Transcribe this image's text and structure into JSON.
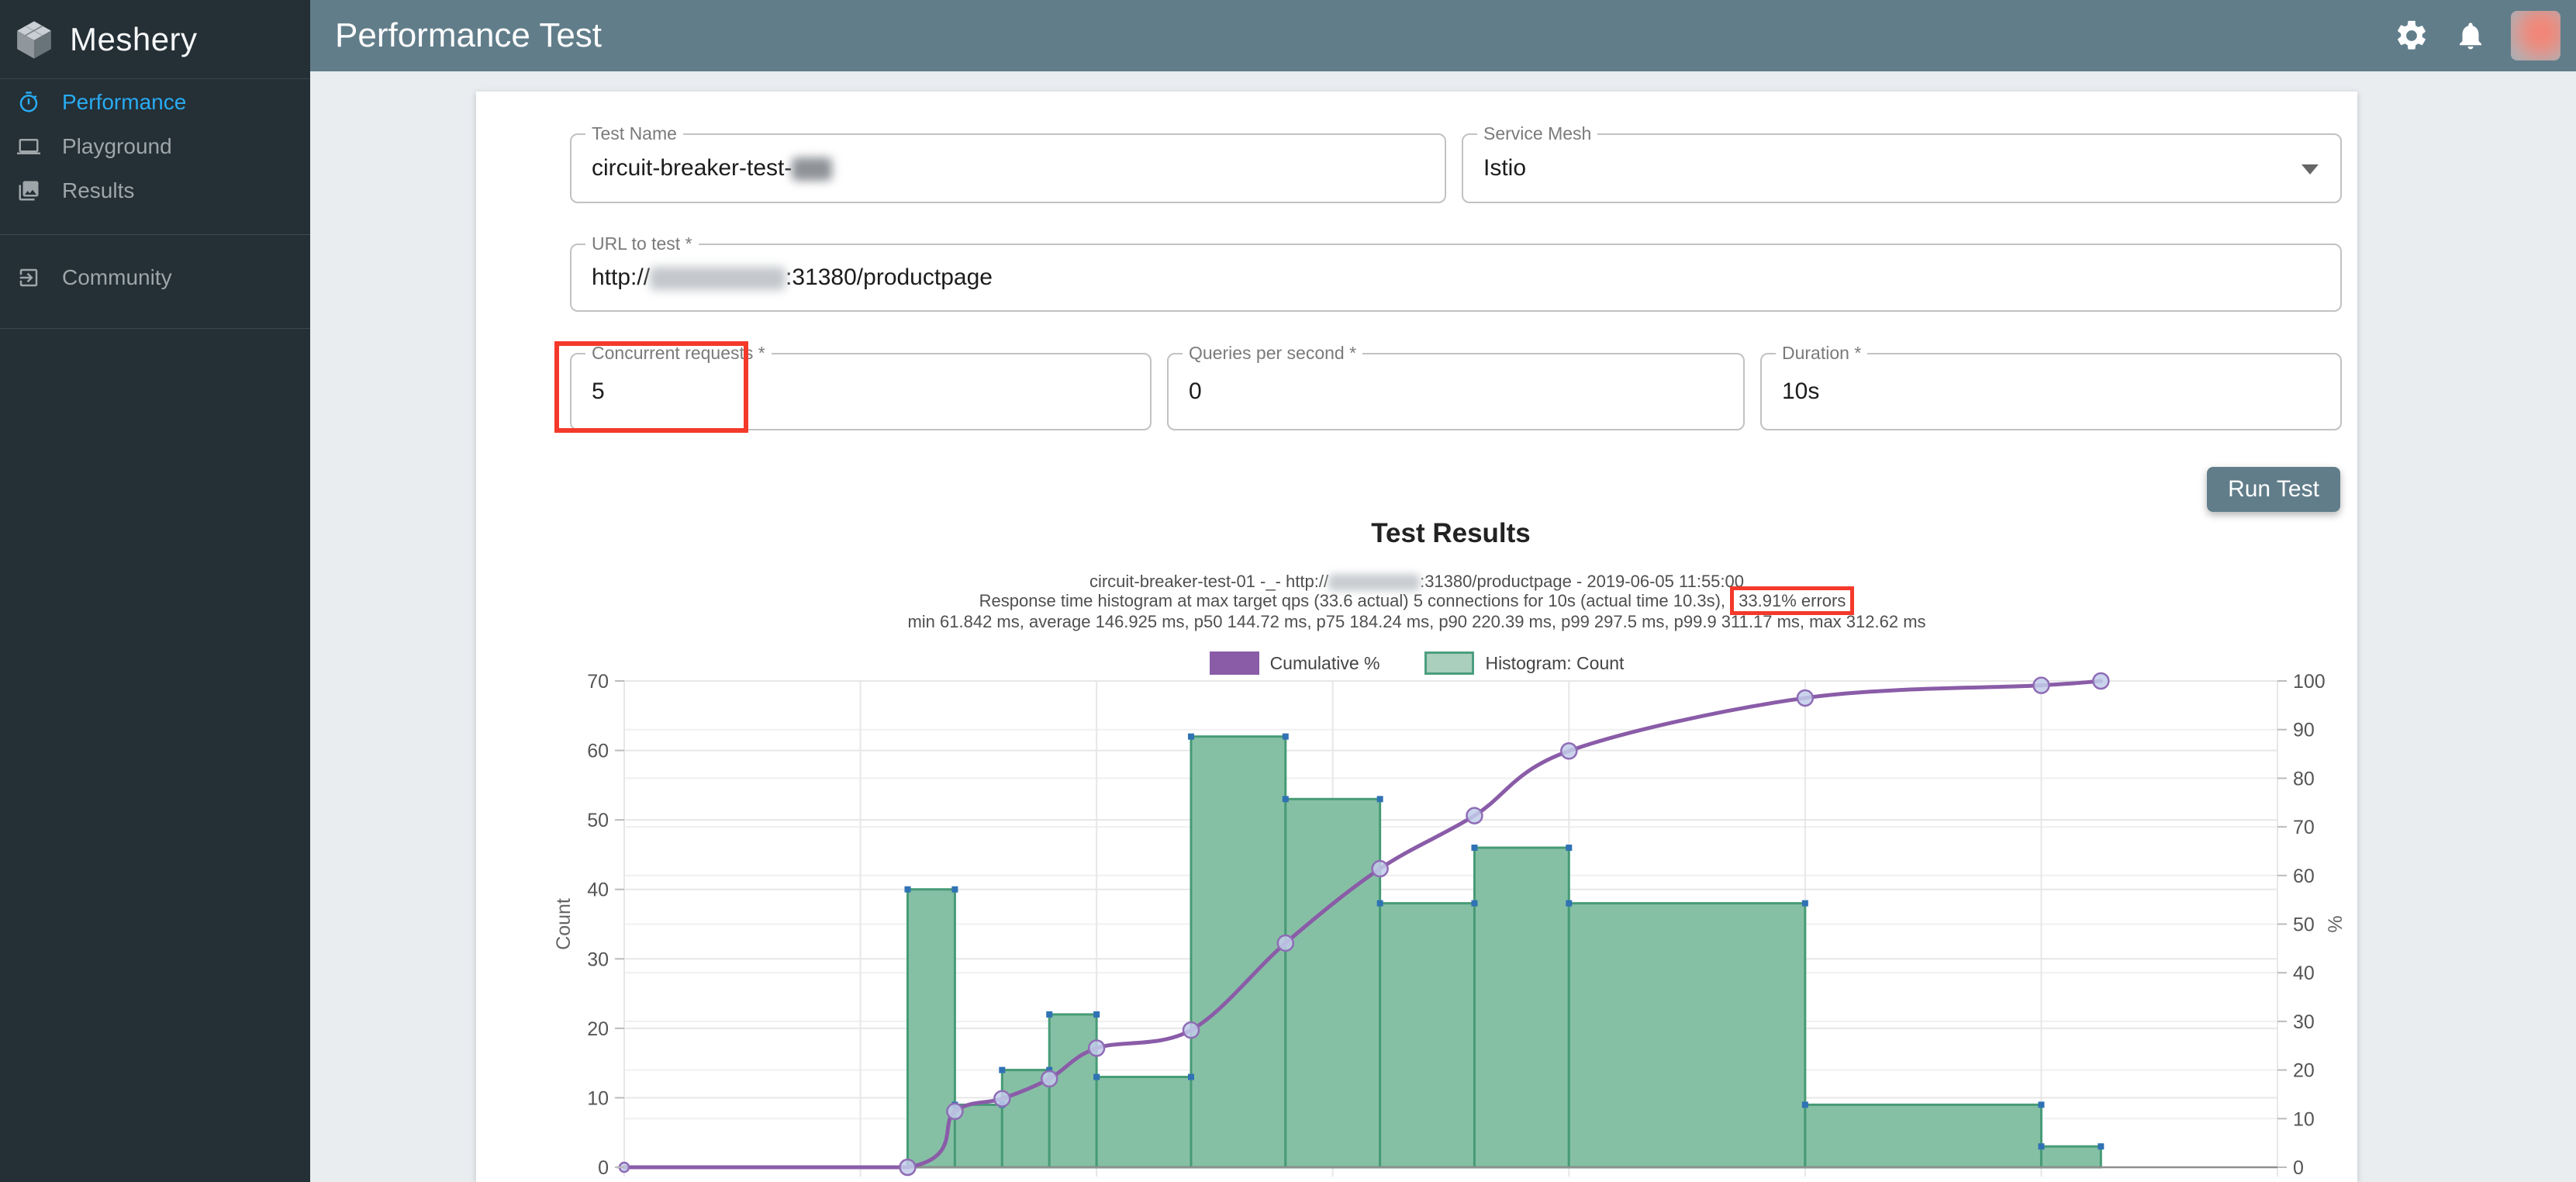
{
  "app": {
    "colors": {
      "sidebar_bg": "#242F36",
      "accent_blue": "#29ABF2",
      "header_bg": "#617D8A",
      "annotation_red": "#F4392B",
      "content_bg": "#E9EDF0"
    }
  },
  "sidebar": {
    "brand": "Meshery",
    "items": [
      {
        "label": "Performance",
        "icon": "timer-icon",
        "active": true
      },
      {
        "label": "Playground",
        "icon": "laptop-icon",
        "active": false
      },
      {
        "label": "Results",
        "icon": "results-icon",
        "active": false
      }
    ],
    "community_label": "Community"
  },
  "header": {
    "title": "Performance Test",
    "icons": [
      "settings-gear-icon",
      "notifications-bell-icon",
      "user-avatar"
    ]
  },
  "form": {
    "test_name": {
      "label": "Test Name",
      "value": "circuit-breaker-test-",
      "suffix_redacted": true
    },
    "service_mesh": {
      "label": "Service Mesh",
      "value": "Istio"
    },
    "url": {
      "label": "URL to test *",
      "value_pre": "http://",
      "host_redacted": true,
      "value_post": ":31380/productpage"
    },
    "concurrent": {
      "label": "Concurrent requests *",
      "value": "5"
    },
    "qps": {
      "label": "Queries per second *",
      "value": "0"
    },
    "duration": {
      "label": "Duration *",
      "value": "10s"
    },
    "run_label": "Run Test"
  },
  "results": {
    "title": "Test Results",
    "line1_pre": "circuit-breaker-test-01 -_- http://",
    "line1_host_redacted": true,
    "line1_post": ":31380/productpage - 2019-06-05 11:55:00",
    "line2_pre": "Response time histogram at max target qps (33.6 actual) 5 connections for 10s (actual time 10.3s),",
    "line2_errors": "33.91% errors",
    "line3": "min 61.842 ms, average 146.925 ms, p50 144.72 ms, p75 184.24 ms, p90 220.39 ms, p99 297.5 ms, p99.9 311.17 ms, max 312.62 ms",
    "legend": [
      {
        "label": "Cumulative %",
        "swatch": "purple"
      },
      {
        "label": "Histogram: Count",
        "swatch": "green"
      }
    ]
  },
  "chart_data": {
    "type": "histogram_with_cumulative_line",
    "title": "",
    "x_axis": {
      "unit": "ms response time",
      "min": 0,
      "max": 350,
      "gridline_step": 50,
      "tick_labels_visible": false
    },
    "left_axis": {
      "label": "Count",
      "min": 0,
      "max": 70,
      "ticks": [
        0,
        10,
        20,
        30,
        40,
        50,
        60,
        70
      ]
    },
    "right_axis": {
      "label": "%",
      "min": 0,
      "max": 100,
      "ticks": [
        0,
        10,
        20,
        30,
        40,
        50,
        60,
        70,
        80,
        90,
        100
      ]
    },
    "legend_position": "top-center",
    "grid": true,
    "series": [
      {
        "name": "Histogram: Count",
        "type": "histogram",
        "bucket_edges_ms": [
          60,
          70,
          80,
          90,
          100,
          120,
          140,
          160,
          180,
          200,
          250,
          300,
          312.62
        ],
        "counts": [
          40,
          9,
          14,
          22,
          13,
          62,
          53,
          38,
          46,
          38,
          9,
          3
        ]
      },
      {
        "name": "Cumulative %",
        "type": "line",
        "points_ms_pct": [
          [
            0,
            0
          ],
          [
            60,
            0
          ],
          [
            70,
            11.5
          ],
          [
            80,
            14.1
          ],
          [
            90,
            18.2
          ],
          [
            100,
            24.5
          ],
          [
            120,
            28.2
          ],
          [
            140,
            46.1
          ],
          [
            160,
            61.4
          ],
          [
            180,
            72.3
          ],
          [
            200,
            85.6
          ],
          [
            250,
            96.5
          ],
          [
            300,
            99.1
          ],
          [
            312.62,
            100
          ]
        ]
      }
    ],
    "colors": {
      "hist_fill": "#86C0A4",
      "hist_stroke": "#469B76",
      "corner_marker": "#3072B4",
      "line": "#8A5CA8",
      "line_marker_fill": "#C2CCEA",
      "line_marker_stroke": "#8F6CB5",
      "grid": "#E7E7E7",
      "grid_minor": "#F0F0F0",
      "axis_line": "#8F8F8F",
      "tick_text": "#555555"
    }
  }
}
